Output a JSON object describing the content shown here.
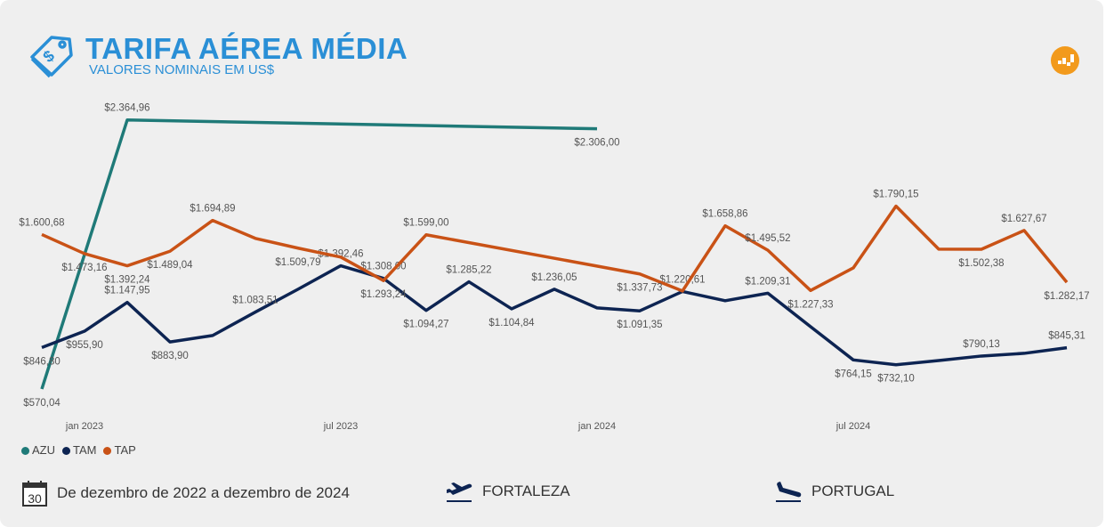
{
  "header": {
    "title": "TARIFA AÉREA MÉDIA",
    "subtitle": "VALORES NOMINAIS EM US$"
  },
  "colors": {
    "AZU": "#1f7a78",
    "TAM": "#0d2452",
    "TAP": "#c95216",
    "title": "#2a8fd6"
  },
  "chart_data": {
    "type": "line",
    "x": [
      "dez 2022",
      "jan 2023",
      "fev 2023",
      "mar 2023",
      "abr 2023",
      "mai 2023",
      "jun 2023",
      "jul 2023",
      "ago 2023",
      "set 2023",
      "out 2023",
      "nov 2023",
      "dez 2023",
      "jan 2024",
      "fev 2024",
      "mar 2024",
      "abr 2024",
      "mai 2024",
      "jun 2024",
      "jul 2024",
      "ago 2024",
      "set 2024",
      "out 2024",
      "nov 2024",
      "dez 2024"
    ],
    "tick_labels": [
      {
        "index": 1,
        "label": "jan 2023"
      },
      {
        "index": 7,
        "label": "jul 2023"
      },
      {
        "index": 13,
        "label": "jan 2024"
      },
      {
        "index": 19,
        "label": "jul 2024"
      }
    ],
    "ylim": [
      0,
      2500
    ],
    "grid": false,
    "legend_position": "bottom-left",
    "series": [
      {
        "name": "AZU",
        "values": [
          570.04,
          null,
          2364.96,
          null,
          null,
          null,
          null,
          null,
          null,
          null,
          null,
          null,
          null,
          2306.0,
          null,
          null,
          null,
          null,
          null,
          null,
          null,
          null,
          null,
          null,
          null
        ],
        "labels": [
          "$570,04",
          null,
          "$2.364,96",
          null,
          null,
          null,
          null,
          null,
          null,
          null,
          null,
          null,
          null,
          "$2.306,00",
          null,
          null,
          null,
          null,
          null,
          null,
          null,
          null,
          null,
          null,
          null
        ]
      },
      {
        "name": "TAM",
        "values": [
          846.8,
          955.9,
          1147.95,
          883.9,
          927,
          1083.51,
          1236,
          1392.46,
          1308.0,
          1094.27,
          1285.22,
          1104.84,
          1236.05,
          1111,
          1091.35,
          1220.61,
          1159,
          1209.31,
          986,
          764.15,
          732.1,
          760,
          790.13,
          808,
          845.31
        ],
        "labels": [
          "$846,80",
          "$955,90",
          "$1.147,95",
          "$883,90",
          null,
          "$1.083,51",
          null,
          "$1.392,46",
          "$1.308,00",
          "$1.094,27",
          "$1.285,22",
          "$1.104,84",
          "$1.236,05",
          null,
          "$1.091,35",
          "$1.220,61",
          null,
          "$1.209,31",
          null,
          "$764,15",
          "$732,10",
          null,
          "$790,13",
          null,
          "$845,31"
        ]
      },
      {
        "name": "TAP",
        "values": [
          1600.68,
          1473.16,
          1392.24,
          1489.04,
          1694.89,
          1575,
          1509.79,
          1450,
          1293.24,
          1599.0,
          null,
          null,
          null,
          null,
          1337.73,
          1224,
          1658.86,
          1495.52,
          1227.33,
          1378,
          1790.15,
          1503,
          1502.38,
          1627.67,
          1282.17
        ],
        "labels": [
          "$1.600,68",
          "$1.473,16",
          "$1.392,24",
          "$1.489,04",
          "$1.694,89",
          null,
          "$1.509,79",
          null,
          "$1.293,24",
          "$1.599,00",
          null,
          null,
          null,
          null,
          "$1.337,73",
          null,
          "$1.658,86",
          "$1.495,52",
          "$1.227,33",
          null,
          "$1.790,15",
          null,
          "$1.502,38",
          "$1.627,67",
          "$1.282,17"
        ]
      }
    ]
  },
  "footer": {
    "period": "De dezembro de 2022 a dezembro de 2024",
    "calendar_day": "30",
    "origin": "FORTALEZA",
    "destination": "PORTUGAL"
  }
}
